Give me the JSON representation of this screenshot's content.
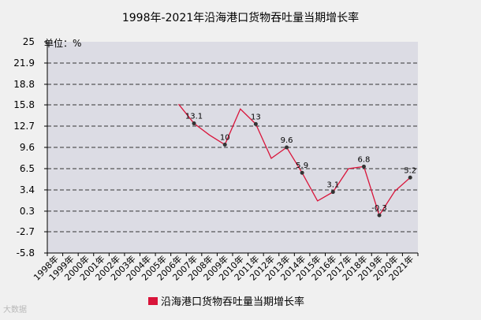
{
  "chart_data": {
    "type": "line",
    "title": "1998年-2021年沿海港口货物吞吐量当期增长率",
    "ylabel": "单位：%",
    "ylim": [
      -5.8,
      25
    ],
    "yticks": [
      "25",
      "21.9",
      "18.8",
      "15.8",
      "12.7",
      "9.6",
      "6.5",
      "3.4",
      "0.3",
      "-2.7",
      "-5.8"
    ],
    "ytick_values": [
      25,
      21.9,
      18.8,
      15.8,
      12.7,
      9.6,
      6.5,
      3.4,
      0.3,
      -2.7,
      -5.8
    ],
    "categories": [
      "1998年",
      "1999年",
      "2000年",
      "2001年",
      "2002年",
      "2003年",
      "2004年",
      "2005年",
      "2006年",
      "2007年",
      "2008年",
      "2009年",
      "2010年",
      "2011年",
      "2012年",
      "2013年",
      "2014年",
      "2015年",
      "2016年",
      "2017年",
      "2018年",
      "2019年",
      "2020年",
      "2021年"
    ],
    "series": [
      {
        "name": "沿海港口货物吞吐量当期增长率",
        "color": "#d9143a",
        "values": [
          null,
          null,
          null,
          null,
          null,
          null,
          null,
          null,
          15.9,
          13.1,
          11.4,
          10,
          15.2,
          13,
          8,
          9.6,
          5.9,
          1.8,
          3.1,
          6.5,
          6.8,
          -0.3,
          3.2,
          5.2
        ]
      }
    ],
    "data_labels": [
      {
        "index": 9,
        "text": "13.1"
      },
      {
        "index": 11,
        "text": "10"
      },
      {
        "index": 13,
        "text": "13"
      },
      {
        "index": 15,
        "text": "9.6"
      },
      {
        "index": 16,
        "text": "5.9"
      },
      {
        "index": 18,
        "text": "3.1"
      },
      {
        "index": 20,
        "text": "6.8"
      },
      {
        "index": 21,
        "text": "-0.3"
      },
      {
        "index": 23,
        "text": "5.2"
      }
    ],
    "grid": true,
    "legend": "bottom"
  },
  "watermark": "大数据"
}
